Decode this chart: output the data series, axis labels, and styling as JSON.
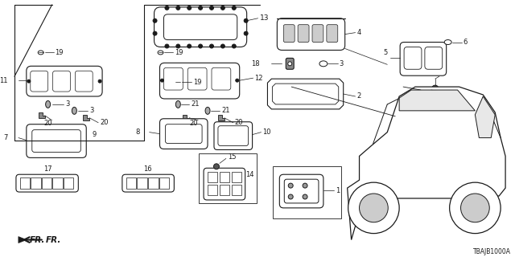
{
  "bg_color": "#ffffff",
  "diagram_code": "TBAJB1000A",
  "line_color": "#1a1a1a",
  "label_color": "#1a1a1a"
}
